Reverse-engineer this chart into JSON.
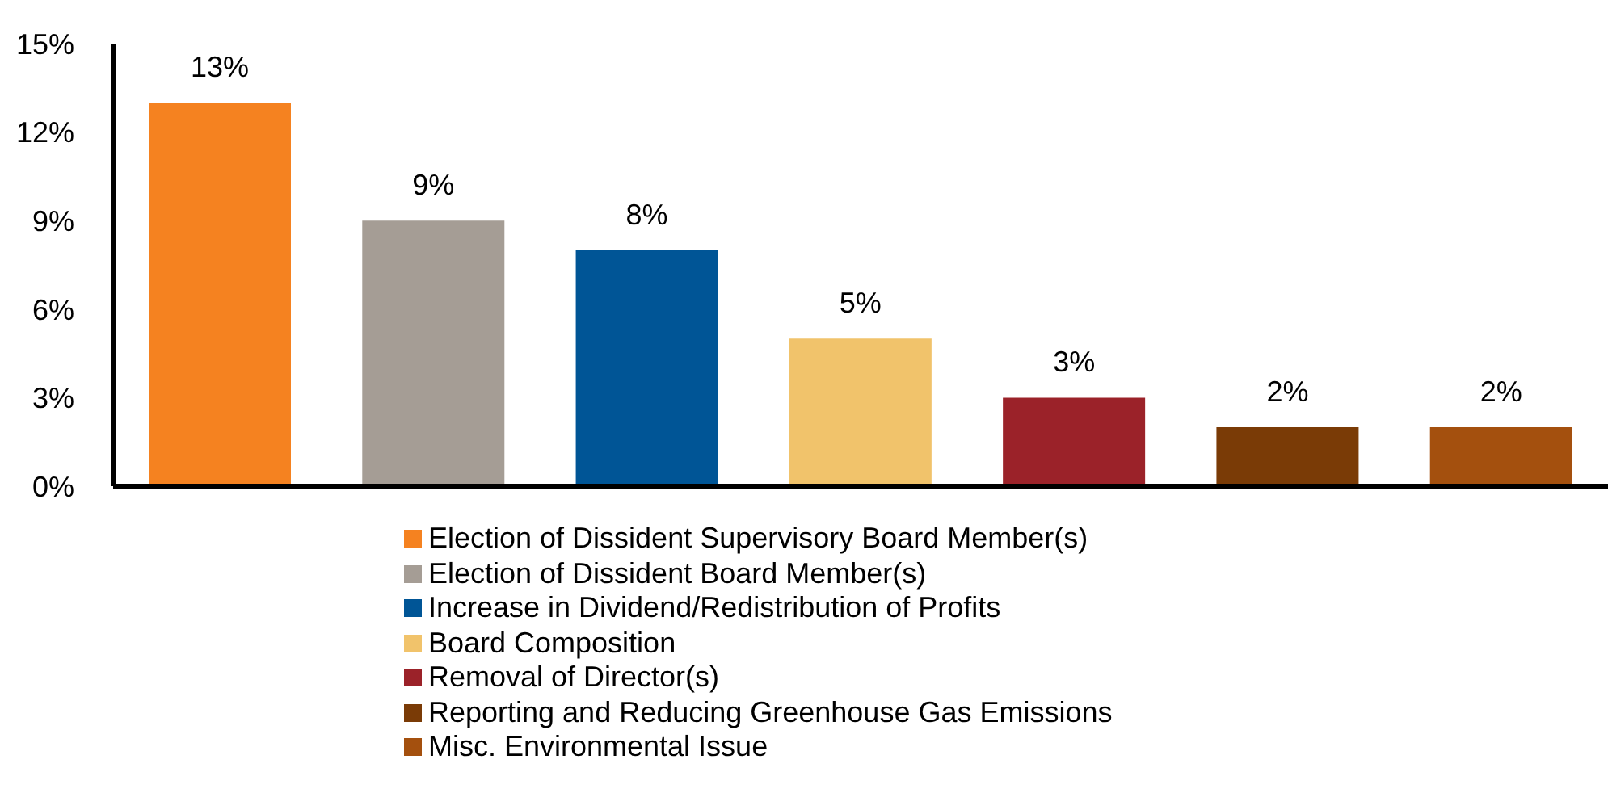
{
  "chart_data": {
    "type": "bar",
    "categories": [
      null,
      null,
      null,
      null,
      null,
      null,
      null
    ],
    "series": [
      {
        "name": "Election of Dissident Supervisory Board Member(s)",
        "color": "#f58220",
        "values": [
          13,
          null,
          null,
          null,
          null,
          null,
          null
        ],
        "value_labels": [
          "13%",
          null,
          null,
          null,
          null,
          null,
          null
        ]
      },
      {
        "name": "Election of Dissident Board Member(s)",
        "color": "#a59d95",
        "values": [
          null,
          9,
          null,
          null,
          null,
          null,
          null
        ],
        "value_labels": [
          null,
          "9%",
          null,
          null,
          null,
          null,
          null
        ]
      },
      {
        "name": "Increase in Dividend/Redistribution of Profits",
        "color": "#005596",
        "values": [
          null,
          null,
          8,
          null,
          null,
          null,
          null
        ],
        "value_labels": [
          null,
          null,
          "8%",
          null,
          null,
          null,
          null
        ]
      },
      {
        "name": "Board Composition",
        "color": "#f1c36b",
        "values": [
          null,
          null,
          null,
          5,
          null,
          null,
          null
        ],
        "value_labels": [
          null,
          null,
          null,
          "5%",
          null,
          null,
          null
        ]
      },
      {
        "name": "Removal of Director(s)",
        "color": "#9b2229",
        "values": [
          null,
          null,
          null,
          null,
          3,
          null,
          null
        ],
        "value_labels": [
          null,
          null,
          null,
          null,
          "3%",
          null,
          null
        ]
      },
      {
        "name": "Reporting and Reducing Greenhouse Gas Emissions",
        "color": "#7a3b06",
        "values": [
          null,
          null,
          null,
          null,
          null,
          2,
          null
        ],
        "value_labels": [
          null,
          null,
          null,
          null,
          null,
          "2%",
          null
        ]
      },
      {
        "name": "Misc. Environmental Issue",
        "color": "#a4500e",
        "values": [
          null,
          null,
          null,
          null,
          null,
          null,
          2
        ],
        "value_labels": [
          null,
          null,
          null,
          null,
          null,
          null,
          "2%"
        ]
      }
    ],
    "ylim": [
      0,
      15
    ],
    "yticks": [
      {
        "value": 0,
        "label": "0%"
      },
      {
        "value": 3,
        "label": "3%"
      },
      {
        "value": 6,
        "label": "6%"
      },
      {
        "value": 9,
        "label": "9%"
      },
      {
        "value": 12,
        "label": "12%"
      },
      {
        "value": 15,
        "label": "15%"
      }
    ],
    "grid": false,
    "legend": "bottom"
  }
}
